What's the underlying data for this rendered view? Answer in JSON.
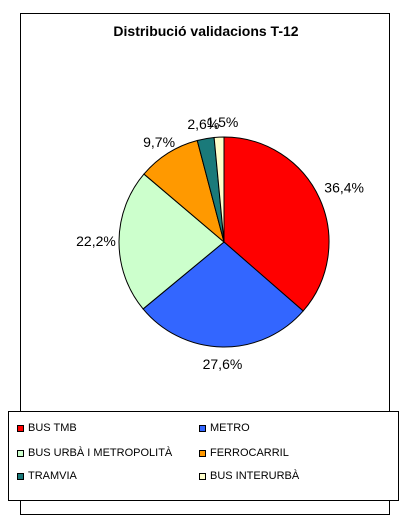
{
  "chart_data": {
    "type": "pie",
    "title": "Distribució validacions T-12",
    "categories": [
      "BUS TMB",
      "METRO",
      "BUS URBÀ I METROPOLITÀ",
      "FERROCARRIL",
      "TRAMVIA",
      "BUS INTERURBÀ"
    ],
    "values": [
      36.4,
      27.6,
      22.2,
      9.7,
      2.6,
      1.5
    ],
    "labels": [
      "36,4%",
      "27,6%",
      "22,2%",
      "9,7%",
      "2,6%",
      "1,5%"
    ],
    "colors": [
      "#ff0000",
      "#3366ff",
      "#ccffcc",
      "#ff9900",
      "#1a7a7a",
      "#ffffcc"
    ],
    "legend_placement": "bottom",
    "grid": false
  }
}
